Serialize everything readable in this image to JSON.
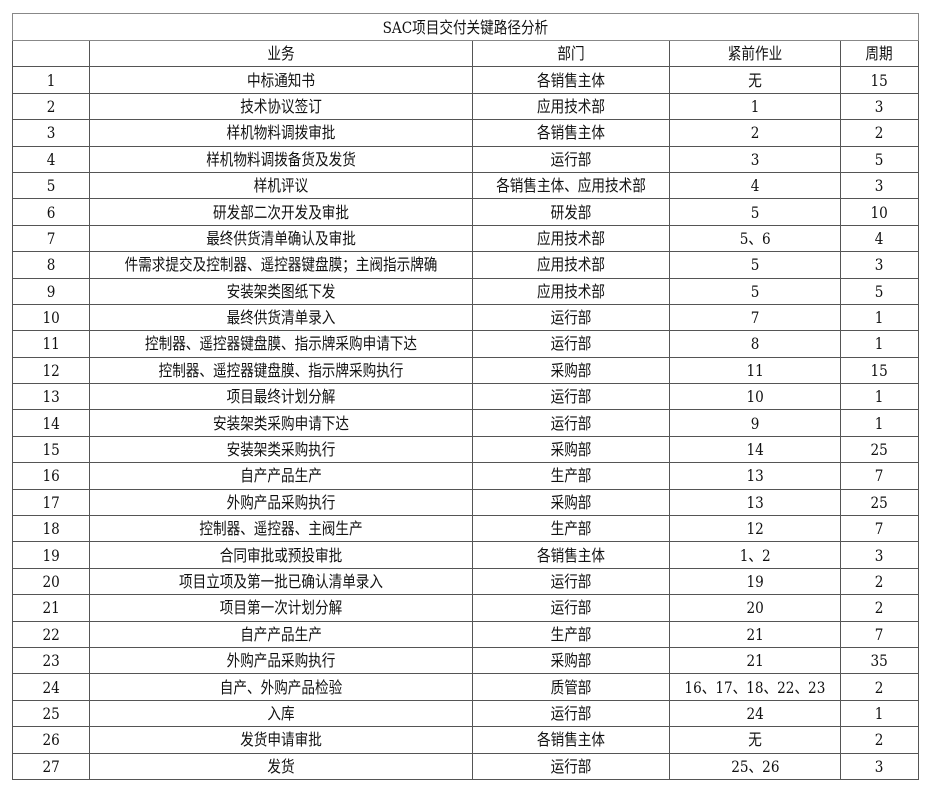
{
  "title": "SAC项目交付关键路径分析",
  "headers": [
    "",
    "业务",
    "部门",
    "紧前作业",
    "周期"
  ],
  "rows": [
    [
      "1",
      "中标通知书",
      "各销售主体",
      "无",
      "15"
    ],
    [
      "2",
      "技术协议签订",
      "应用技术部",
      "1",
      "3"
    ],
    [
      "3",
      "样机物料调拨审批",
      "各销售主体",
      "2",
      "2"
    ],
    [
      "4",
      "样机物料调拨备货及发货",
      "运行部",
      "3",
      "5"
    ],
    [
      "5",
      "样机评议",
      "各销售主体、应用技术部",
      "4",
      "3"
    ],
    [
      "6",
      "研发部二次开发及审批",
      "研发部",
      "5",
      "10"
    ],
    [
      "7",
      "最终供货清单确认及审批",
      "应用技术部",
      "5、6",
      "4"
    ],
    [
      "8",
      "件需求提交及控制器、遥控器键盘膜；主阀指示牌确",
      "应用技术部",
      "5",
      "3"
    ],
    [
      "9",
      "安装架类图纸下发",
      "应用技术部",
      "5",
      "5"
    ],
    [
      "10",
      "最终供货清单录入",
      "运行部",
      "7",
      "1"
    ],
    [
      "11",
      "控制器、遥控器键盘膜、指示牌采购申请下达",
      "运行部",
      "8",
      "1"
    ],
    [
      "12",
      "控制器、遥控器键盘膜、指示牌采购执行",
      "采购部",
      "11",
      "15"
    ],
    [
      "13",
      "项目最终计划分解",
      "运行部",
      "10",
      "1"
    ],
    [
      "14",
      "安装架类采购申请下达",
      "运行部",
      "9",
      "1"
    ],
    [
      "15",
      "安装架类采购执行",
      "采购部",
      "14",
      "25"
    ],
    [
      "16",
      "自产产品生产",
      "生产部",
      "13",
      "7"
    ],
    [
      "17",
      "外购产品采购执行",
      "采购部",
      "13",
      "25"
    ],
    [
      "18",
      "控制器、遥控器、主阀生产",
      "生产部",
      "12",
      "7"
    ],
    [
      "19",
      "合同审批或预投审批",
      "各销售主体",
      "1、2",
      "3"
    ],
    [
      "20",
      "项目立项及第一批已确认清单录入",
      "运行部",
      "19",
      "2"
    ],
    [
      "21",
      "项目第一次计划分解",
      "运行部",
      "20",
      "2"
    ],
    [
      "22",
      "自产产品生产",
      "生产部",
      "21",
      "7"
    ],
    [
      "23",
      "外购产品采购执行",
      "采购部",
      "21",
      "35"
    ],
    [
      "24",
      "自产、外购产品检验",
      "质管部",
      "16、17、18、22、23",
      "2"
    ],
    [
      "25",
      "入库",
      "运行部",
      "24",
      "1"
    ],
    [
      "26",
      "发货申请审批",
      "各销售主体",
      "无",
      "2"
    ],
    [
      "27",
      "发货",
      "运行部",
      "25、26",
      "3"
    ]
  ]
}
